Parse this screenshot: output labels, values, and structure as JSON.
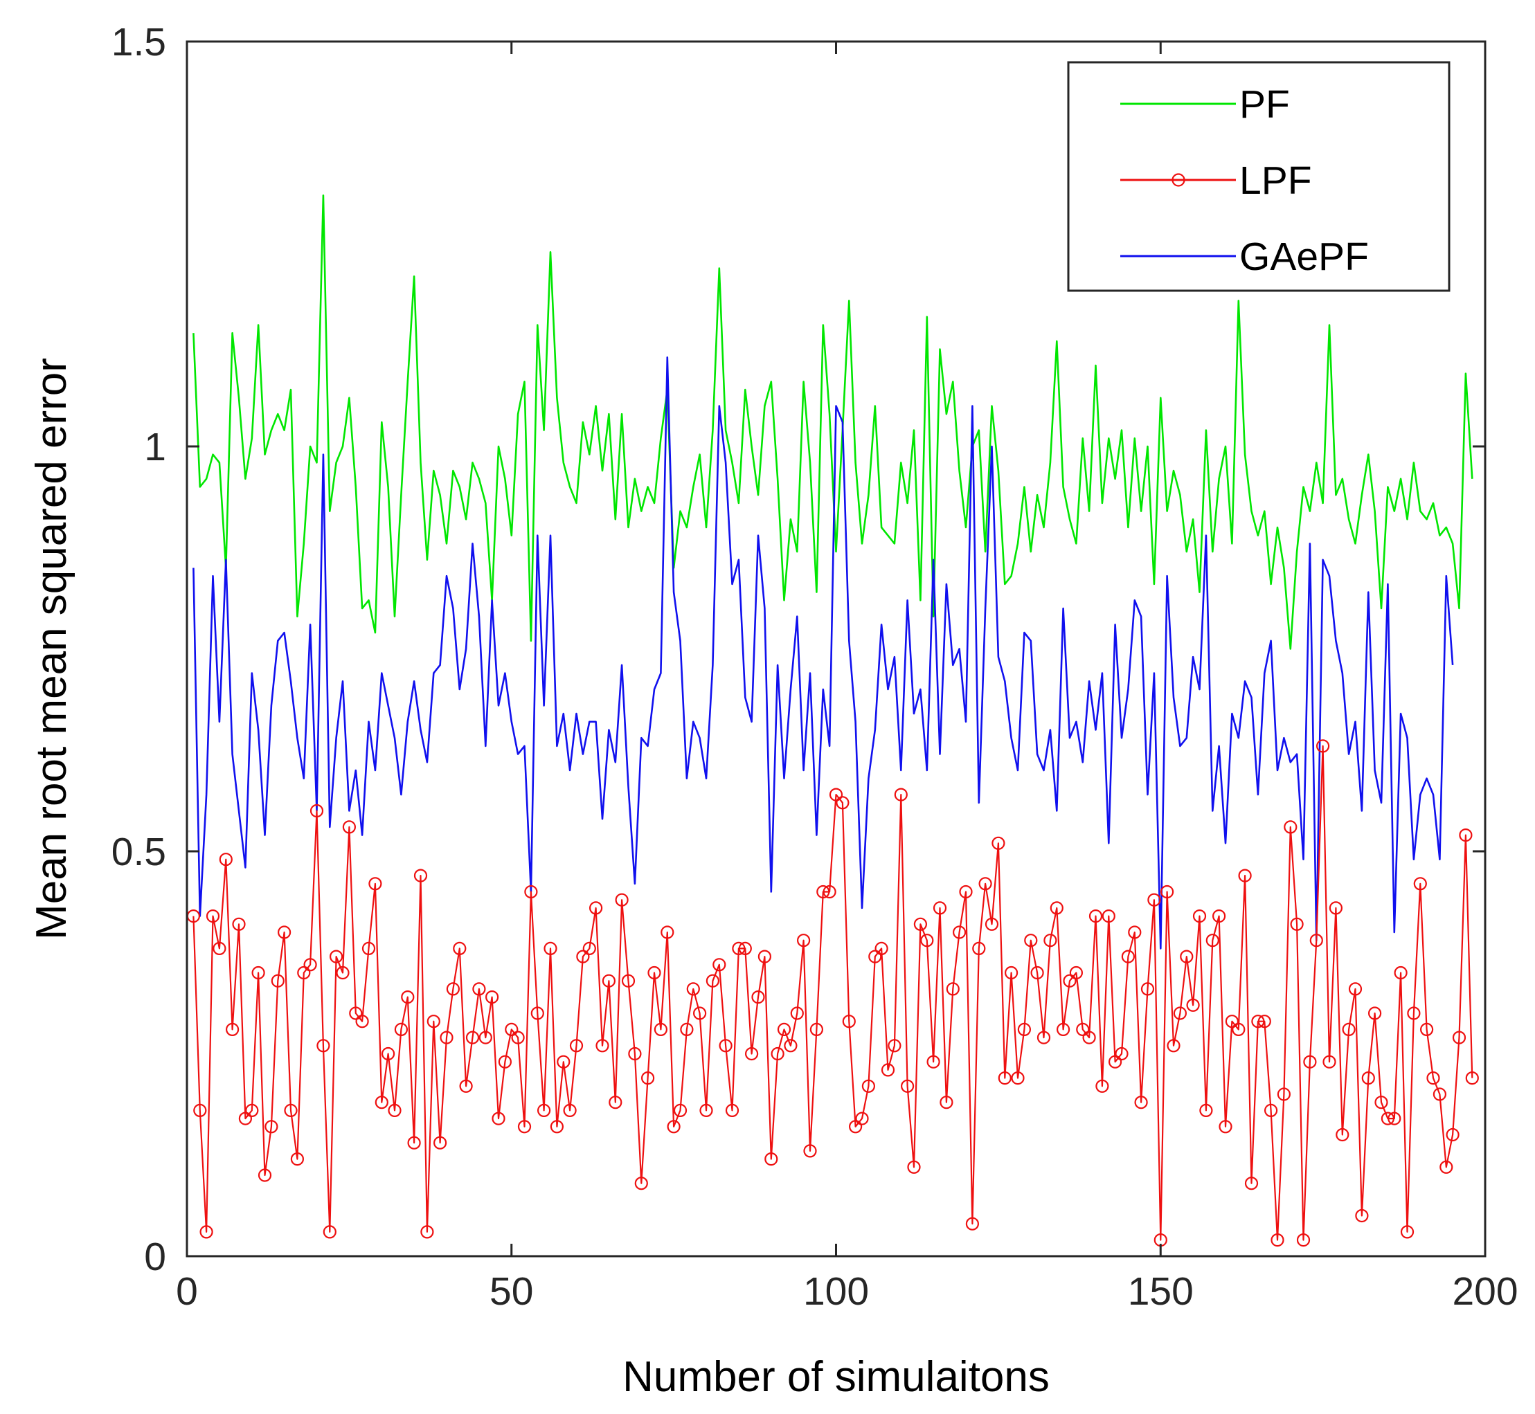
{
  "chart_data": {
    "type": "line",
    "xlabel": "Number of simulaitons",
    "ylabel": "Mean root mean squared error",
    "xlim": [
      0,
      200
    ],
    "ylim": [
      0,
      1.5
    ],
    "xticks": [
      0,
      50,
      100,
      150,
      200
    ],
    "yticks": [
      0,
      0.5,
      1,
      1.5
    ],
    "xtick_labels": [
      "0",
      "50",
      "100",
      "150",
      "200"
    ],
    "ytick_labels": [
      "0",
      "0.5",
      "1",
      "1.5"
    ],
    "grid": false,
    "legend_position": "top-right",
    "series": [
      {
        "name": "PF",
        "color": "#00e600",
        "marker": "none",
        "values": [
          1.14,
          0.95,
          0.96,
          0.99,
          0.98,
          0.85,
          1.14,
          1.06,
          0.96,
          1.01,
          1.15,
          0.99,
          1.02,
          1.04,
          1.02,
          1.07,
          0.79,
          0.88,
          1.0,
          0.98,
          1.31,
          0.92,
          0.98,
          1.0,
          1.06,
          0.95,
          0.8,
          0.81,
          0.77,
          1.03,
          0.95,
          0.79,
          0.94,
          1.08,
          1.21,
          0.98,
          0.86,
          0.97,
          0.94,
          0.88,
          0.97,
          0.95,
          0.91,
          0.98,
          0.96,
          0.93,
          0.81,
          1.0,
          0.96,
          0.89,
          1.04,
          1.08,
          0.76,
          1.15,
          1.02,
          1.24,
          1.06,
          0.98,
          0.95,
          0.93,
          1.03,
          0.99,
          1.05,
          0.97,
          1.04,
          0.91,
          1.04,
          0.9,
          0.96,
          0.92,
          0.95,
          0.93,
          1.01,
          1.07,
          0.85,
          0.92,
          0.9,
          0.95,
          0.99,
          0.9,
          1.02,
          1.22,
          1.02,
          0.98,
          0.93,
          1.07,
          1.0,
          0.94,
          1.05,
          1.08,
          0.96,
          0.81,
          0.91,
          0.87,
          1.08,
          0.98,
          0.82,
          1.15,
          1.04,
          0.87,
          1.02,
          1.18,
          0.98,
          0.88,
          0.94,
          1.05,
          0.9,
          0.89,
          0.88,
          0.98,
          0.93,
          1.02,
          0.81,
          1.16,
          0.79,
          1.12,
          1.04,
          1.08,
          0.97,
          0.9,
          1.0,
          1.02,
          0.87,
          1.05,
          0.97,
          0.83,
          0.84,
          0.88,
          0.95,
          0.87,
          0.94,
          0.9,
          0.98,
          1.13,
          0.95,
          0.91,
          0.88,
          1.01,
          0.92,
          1.1,
          0.93,
          1.01,
          0.96,
          1.02,
          0.9,
          1.01,
          0.92,
          1.0,
          0.83,
          1.06,
          0.92,
          0.97,
          0.94,
          0.87,
          0.91,
          0.82,
          1.02,
          0.87,
          0.96,
          1.0,
          0.88,
          1.18,
          0.99,
          0.92,
          0.89,
          0.92,
          0.83,
          0.9,
          0.85,
          0.75,
          0.87,
          0.95,
          0.92,
          0.98,
          0.93,
          1.15,
          0.94,
          0.96,
          0.91,
          0.88,
          0.94,
          0.99,
          0.92,
          0.8,
          0.95,
          0.92,
          0.96,
          0.91,
          0.98,
          0.92,
          0.91,
          0.93,
          0.89,
          0.9,
          0.88,
          0.8,
          1.09,
          0.96
        ],
        "stroke_width": 2.6
      },
      {
        "name": "GAePF",
        "color": "#1010ee",
        "marker": "none",
        "values": [
          0.85,
          0.42,
          0.57,
          0.84,
          0.66,
          0.86,
          0.62,
          0.55,
          0.48,
          0.72,
          0.65,
          0.52,
          0.68,
          0.76,
          0.77,
          0.71,
          0.64,
          0.59,
          0.78,
          0.55,
          0.99,
          0.53,
          0.64,
          0.71,
          0.55,
          0.6,
          0.52,
          0.66,
          0.6,
          0.72,
          0.68,
          0.64,
          0.57,
          0.66,
          0.71,
          0.65,
          0.61,
          0.72,
          0.73,
          0.84,
          0.8,
          0.7,
          0.75,
          0.88,
          0.79,
          0.63,
          0.81,
          0.68,
          0.72,
          0.66,
          0.62,
          0.63,
          0.45,
          0.89,
          0.68,
          0.89,
          0.63,
          0.67,
          0.6,
          0.67,
          0.62,
          0.66,
          0.66,
          0.54,
          0.65,
          0.61,
          0.73,
          0.58,
          0.46,
          0.64,
          0.63,
          0.7,
          0.72,
          1.11,
          0.82,
          0.76,
          0.59,
          0.66,
          0.64,
          0.59,
          0.73,
          1.05,
          0.98,
          0.83,
          0.86,
          0.69,
          0.66,
          0.89,
          0.8,
          0.45,
          0.73,
          0.59,
          0.7,
          0.79,
          0.6,
          0.72,
          0.52,
          0.7,
          0.63,
          1.05,
          1.03,
          0.76,
          0.66,
          0.43,
          0.59,
          0.65,
          0.78,
          0.7,
          0.74,
          0.6,
          0.81,
          0.67,
          0.7,
          0.6,
          0.86,
          0.62,
          0.83,
          0.73,
          0.75,
          0.66,
          1.05,
          0.56,
          0.8,
          1.0,
          0.74,
          0.71,
          0.64,
          0.6,
          0.77,
          0.76,
          0.62,
          0.6,
          0.65,
          0.55,
          0.8,
          0.64,
          0.66,
          0.61,
          0.71,
          0.65,
          0.72,
          0.51,
          0.78,
          0.64,
          0.7,
          0.81,
          0.79,
          0.57,
          0.72,
          0.38,
          0.84,
          0.69,
          0.63,
          0.64,
          0.74,
          0.7,
          0.89,
          0.55,
          0.63,
          0.51,
          0.67,
          0.64,
          0.71,
          0.69,
          0.57,
          0.72,
          0.76,
          0.6,
          0.64,
          0.61,
          0.62,
          0.49,
          0.88,
          0.39,
          0.86,
          0.84,
          0.76,
          0.72,
          0.62,
          0.66,
          0.55,
          0.82,
          0.6,
          0.56,
          0.83,
          0.4,
          0.67,
          0.64,
          0.49,
          0.57,
          0.59,
          0.57,
          0.49,
          0.84,
          0.73
        ],
        "stroke_width": 2.6
      },
      {
        "name": "LPF",
        "color": "#ee1010",
        "marker": "circle",
        "values": [
          0.42,
          0.18,
          0.03,
          0.42,
          0.38,
          0.49,
          0.28,
          0.41,
          0.17,
          0.18,
          0.35,
          0.1,
          0.16,
          0.34,
          0.4,
          0.18,
          0.12,
          0.35,
          0.36,
          0.55,
          0.26,
          0.03,
          0.37,
          0.35,
          0.53,
          0.3,
          0.29,
          0.38,
          0.46,
          0.19,
          0.25,
          0.18,
          0.28,
          0.32,
          0.14,
          0.47,
          0.03,
          0.29,
          0.14,
          0.27,
          0.33,
          0.38,
          0.21,
          0.27,
          0.33,
          0.27,
          0.32,
          0.17,
          0.24,
          0.28,
          0.27,
          0.16,
          0.45,
          0.3,
          0.18,
          0.38,
          0.16,
          0.24,
          0.18,
          0.26,
          0.37,
          0.38,
          0.43,
          0.26,
          0.34,
          0.19,
          0.44,
          0.34,
          0.25,
          0.09,
          0.22,
          0.35,
          0.28,
          0.4,
          0.16,
          0.18,
          0.28,
          0.33,
          0.3,
          0.18,
          0.34,
          0.36,
          0.26,
          0.18,
          0.38,
          0.38,
          0.25,
          0.32,
          0.37,
          0.12,
          0.25,
          0.28,
          0.26,
          0.3,
          0.39,
          0.13,
          0.28,
          0.45,
          0.45,
          0.57,
          0.56,
          0.29,
          0.16,
          0.17,
          0.21,
          0.37,
          0.38,
          0.23,
          0.26,
          0.57,
          0.21,
          0.11,
          0.41,
          0.39,
          0.24,
          0.43,
          0.19,
          0.33,
          0.4,
          0.45,
          0.04,
          0.38,
          0.46,
          0.41,
          0.51,
          0.22,
          0.35,
          0.22,
          0.28,
          0.39,
          0.35,
          0.27,
          0.39,
          0.43,
          0.28,
          0.34,
          0.35,
          0.28,
          0.27,
          0.42,
          0.21,
          0.42,
          0.24,
          0.25,
          0.37,
          0.4,
          0.19,
          0.33,
          0.44,
          0.02,
          0.45,
          0.26,
          0.3,
          0.37,
          0.31,
          0.42,
          0.18,
          0.39,
          0.42,
          0.16,
          0.29,
          0.28,
          0.47,
          0.09,
          0.29,
          0.29,
          0.18,
          0.02,
          0.2,
          0.53,
          0.41,
          0.02,
          0.24,
          0.39,
          0.63,
          0.24,
          0.43,
          0.15,
          0.28,
          0.33,
          0.05,
          0.22,
          0.3,
          0.19,
          0.17,
          0.17,
          0.35,
          0.03,
          0.3,
          0.46,
          0.28,
          0.22,
          0.2,
          0.11,
          0.15,
          0.27,
          0.52,
          0.22
        ],
        "stroke_width": 2.2
      }
    ],
    "legend_order": [
      "PF",
      "LPF",
      "GAePF"
    ]
  }
}
